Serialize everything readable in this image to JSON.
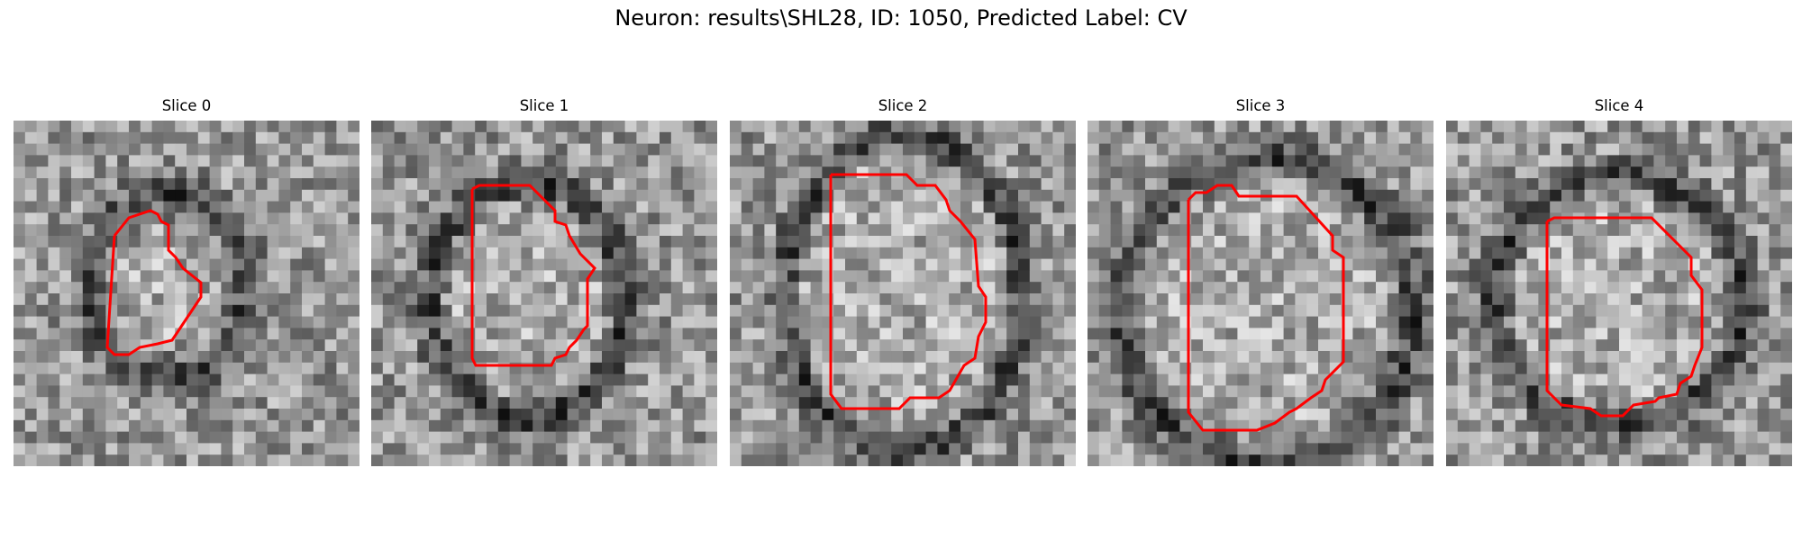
{
  "figure": {
    "title": "Neuron: results\\SHL28, ID: 1050, Predicted Label: CV"
  },
  "slices": [
    {
      "title": "Slice 0"
    },
    {
      "title": "Slice 1"
    },
    {
      "title": "Slice 2"
    },
    {
      "title": "Slice 3"
    },
    {
      "title": "Slice 4"
    }
  ],
  "colors": {
    "contour": "#ff0000"
  }
}
